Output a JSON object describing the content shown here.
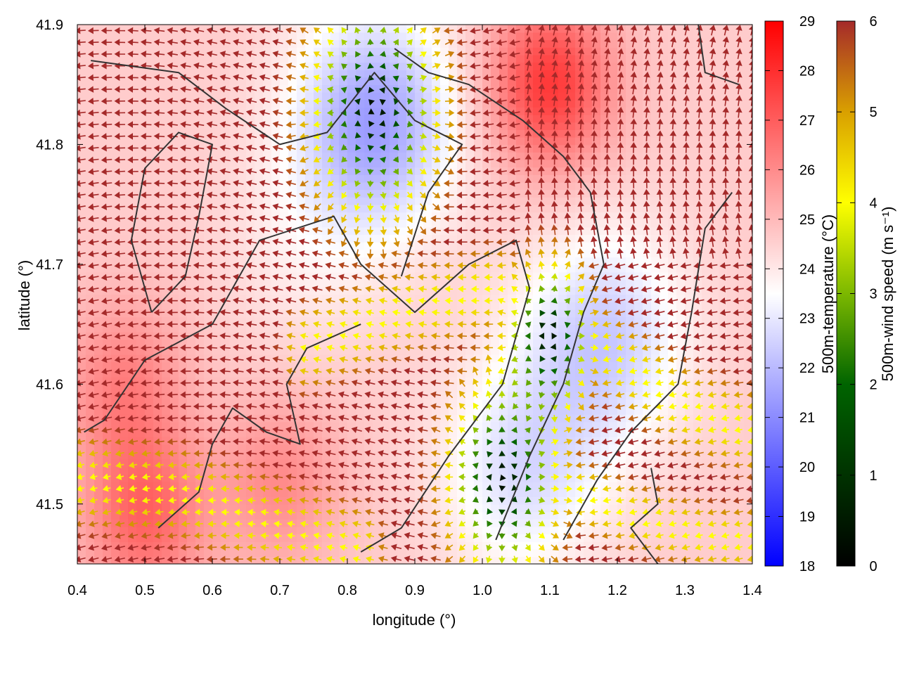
{
  "chart_data": {
    "type": "heatmap",
    "title": "",
    "xlabel": "longitude (°)",
    "ylabel": "latitude (°)",
    "xlim": [
      0.4,
      1.4
    ],
    "ylim": [
      41.45,
      41.9
    ],
    "x_ticks": [
      "0.4",
      "0.5",
      "0.6",
      "0.7",
      "0.8",
      "0.9",
      "1.0",
      "1.1",
      "1.2",
      "1.3",
      "1.4"
    ],
    "y_ticks": [
      "41.5",
      "41.6",
      "41.7",
      "41.8",
      "41.9"
    ],
    "background": {
      "name": "500m-temperature (°C)",
      "range": [
        18,
        29
      ],
      "colormap": [
        "#0000ff",
        "#ffffff",
        "#ff0000"
      ],
      "ticks": [
        "18",
        "19",
        "20",
        "21",
        "22",
        "23",
        "24",
        "25",
        "26",
        "27",
        "28",
        "29"
      ]
    },
    "vectors": {
      "name": "500m-wind speed (m s⁻¹)",
      "range": [
        0,
        6
      ],
      "colormap": [
        "#000000",
        "#006400",
        "#7cb800",
        "#ffff00",
        "#d9a000",
        "#a52a2a"
      ],
      "ticks": [
        "0",
        "1",
        "2",
        "3",
        "4",
        "5",
        "6"
      ]
    },
    "cool_regions": [
      {
        "lon": 0.84,
        "lat": 41.82,
        "strength": 3.2
      },
      {
        "lon": 1.06,
        "lat": 41.53,
        "strength": 1.8
      },
      {
        "lon": 1.18,
        "lat": 41.64,
        "strength": 2.2
      },
      {
        "lon": 0.73,
        "lat": 41.71,
        "strength": 0.6
      }
    ],
    "warm_regions": [
      {
        "lon": 1.1,
        "lat": 41.85,
        "strength": 3.2
      },
      {
        "lon": 0.47,
        "lat": 41.6,
        "strength": 1.6
      },
      {
        "lon": 0.5,
        "lat": 41.49,
        "strength": 2.2
      },
      {
        "lon": 0.7,
        "lat": 41.52,
        "strength": 1.4
      }
    ],
    "calm_centers": [
      {
        "lon": 0.84,
        "lat": 41.83,
        "radius": 0.07
      },
      {
        "lon": 1.03,
        "lat": 41.52,
        "radius": 0.06
      },
      {
        "lon": 1.1,
        "lat": 41.64,
        "radius": 0.045
      }
    ],
    "convergence_bands": [
      {
        "lon": [
          0.74,
          0.88,
          1.02,
          1.15,
          1.3,
          1.4
        ],
        "lat": [
          41.63,
          41.66,
          41.68,
          41.64,
          41.58,
          41.56
        ],
        "width": 0.028
      },
      {
        "lon": [
          0.4,
          0.55,
          0.7,
          0.82
        ],
        "lat": [
          41.52,
          41.51,
          41.48,
          41.46
        ],
        "width": 0.03
      },
      {
        "lon": [
          1.1,
          1.22,
          1.35,
          1.4
        ],
        "lat": [
          41.52,
          41.49,
          41.47,
          41.47
        ],
        "width": 0.022
      }
    ],
    "coastlines": [
      [
        [
          0.41,
          41.56
        ],
        [
          0.44,
          41.57
        ],
        [
          0.5,
          41.62
        ],
        [
          0.6,
          41.65
        ],
        [
          0.67,
          41.72
        ],
        [
          0.78,
          41.74
        ],
        [
          0.82,
          41.7
        ],
        [
          0.9,
          41.66
        ],
        [
          0.98,
          41.7
        ],
        [
          1.05,
          41.72
        ],
        [
          1.07,
          41.68
        ],
        [
          1.03,
          41.6
        ],
        [
          0.95,
          41.54
        ],
        [
          0.88,
          41.48
        ],
        [
          0.82,
          41.46
        ]
      ],
      [
        [
          0.52,
          41.48
        ],
        [
          0.58,
          41.51
        ],
        [
          0.6,
          41.55
        ],
        [
          0.63,
          41.58
        ],
        [
          0.68,
          41.56
        ],
        [
          0.73,
          41.55
        ],
        [
          0.71,
          41.6
        ],
        [
          0.74,
          41.63
        ],
        [
          0.82,
          41.65
        ]
      ],
      [
        [
          0.42,
          41.87
        ],
        [
          0.55,
          41.86
        ],
        [
          0.62,
          41.83
        ],
        [
          0.7,
          41.8
        ],
        [
          0.77,
          41.81
        ],
        [
          0.84,
          41.86
        ],
        [
          0.9,
          41.82
        ],
        [
          0.97,
          41.8
        ],
        [
          0.92,
          41.76
        ],
        [
          0.88,
          41.69
        ]
      ],
      [
        [
          0.51,
          41.66
        ],
        [
          0.56,
          41.69
        ],
        [
          0.58,
          41.74
        ],
        [
          0.6,
          41.8
        ],
        [
          0.55,
          41.81
        ],
        [
          0.5,
          41.78
        ],
        [
          0.48,
          41.72
        ],
        [
          0.51,
          41.66
        ]
      ],
      [
        [
          0.87,
          41.88
        ],
        [
          0.92,
          41.86
        ],
        [
          0.98,
          41.85
        ],
        [
          1.06,
          41.82
        ],
        [
          1.12,
          41.79
        ],
        [
          1.16,
          41.76
        ],
        [
          1.18,
          41.7
        ],
        [
          1.15,
          41.66
        ],
        [
          1.12,
          41.6
        ],
        [
          1.07,
          41.54
        ],
        [
          1.02,
          41.47
        ]
      ],
      [
        [
          1.37,
          41.76
        ],
        [
          1.33,
          41.73
        ],
        [
          1.31,
          41.66
        ],
        [
          1.29,
          41.6
        ],
        [
          1.22,
          41.56
        ],
        [
          1.17,
          41.52
        ],
        [
          1.12,
          41.47
        ]
      ],
      [
        [
          1.25,
          41.53
        ],
        [
          1.26,
          41.5
        ],
        [
          1.22,
          41.48
        ],
        [
          1.26,
          41.45
        ]
      ],
      [
        [
          1.32,
          41.9
        ],
        [
          1.33,
          41.86
        ],
        [
          1.38,
          41.85
        ]
      ]
    ]
  }
}
